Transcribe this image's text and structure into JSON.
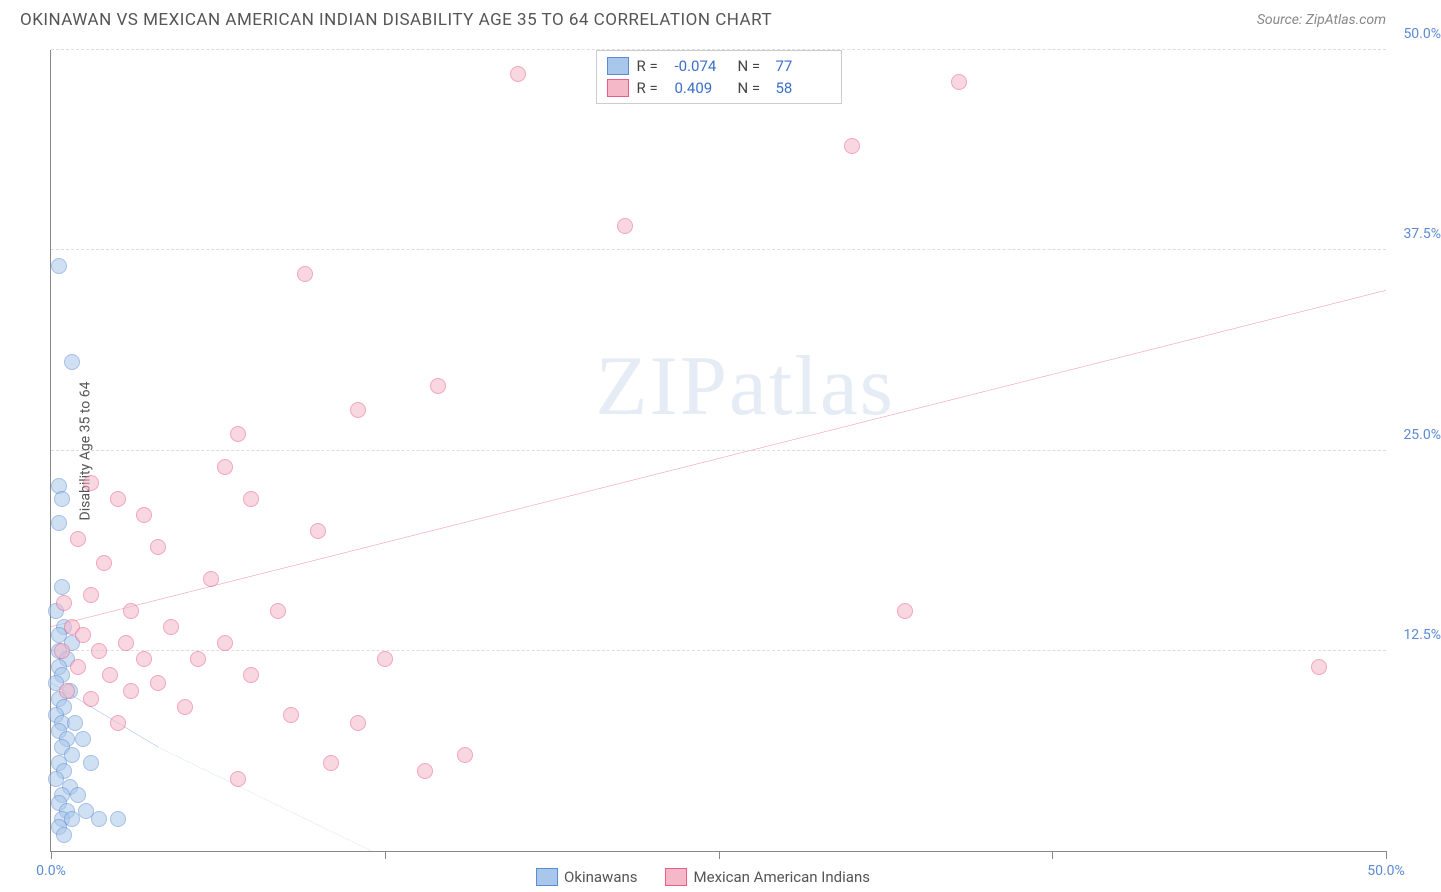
{
  "header": {
    "title": "OKINAWAN VS MEXICAN AMERICAN INDIAN DISABILITY AGE 35 TO 64 CORRELATION CHART",
    "source": "Source: ZipAtlas.com"
  },
  "watermark": {
    "part1": "ZIP",
    "part2": "atlas"
  },
  "chart": {
    "type": "scatter",
    "yaxis_label": "Disability Age 35 to 64",
    "background_color": "#ffffff",
    "grid_color": "#dddddd",
    "axis_color": "#888888",
    "tick_color": "#5b8bd4",
    "xlim": [
      0,
      50
    ],
    "ylim": [
      0,
      50
    ],
    "xticks": [
      0,
      12.5,
      25,
      37.5,
      50
    ],
    "xtick_labels": [
      "0.0%",
      "",
      "",
      "",
      "50.0%"
    ],
    "yticks": [
      12.5,
      25,
      37.5,
      50
    ],
    "ytick_labels": [
      "12.5%",
      "25.0%",
      "37.5%",
      "50.0%"
    ],
    "marker_radius": 8,
    "marker_opacity": 0.55,
    "series": [
      {
        "name": "Okinawans",
        "color_fill": "#a9c7ea",
        "color_stroke": "#5b8bd4",
        "r_value": "-0.074",
        "n_value": "77",
        "trend": {
          "x1": 0,
          "y1": 10.5,
          "x2": 4,
          "y2": 6.5,
          "dash_extend_x": 12,
          "dash_extend_y": 0
        },
        "points": [
          [
            0.3,
            36.5
          ],
          [
            0.8,
            30.5
          ],
          [
            0.3,
            22.8
          ],
          [
            0.4,
            22.0
          ],
          [
            0.3,
            20.5
          ],
          [
            0.4,
            16.5
          ],
          [
            0.2,
            15.0
          ],
          [
            0.5,
            14.0
          ],
          [
            0.3,
            13.5
          ],
          [
            0.8,
            13.0
          ],
          [
            0.3,
            12.5
          ],
          [
            0.6,
            12.0
          ],
          [
            0.3,
            11.5
          ],
          [
            0.4,
            11.0
          ],
          [
            0.2,
            10.5
          ],
          [
            0.7,
            10.0
          ],
          [
            0.3,
            9.5
          ],
          [
            0.5,
            9.0
          ],
          [
            0.2,
            8.5
          ],
          [
            0.4,
            8.0
          ],
          [
            0.9,
            8.0
          ],
          [
            0.3,
            7.5
          ],
          [
            0.6,
            7.0
          ],
          [
            1.2,
            7.0
          ],
          [
            0.4,
            6.5
          ],
          [
            0.8,
            6.0
          ],
          [
            0.3,
            5.5
          ],
          [
            1.5,
            5.5
          ],
          [
            0.5,
            5.0
          ],
          [
            0.2,
            4.5
          ],
          [
            0.7,
            4.0
          ],
          [
            0.4,
            3.5
          ],
          [
            1.0,
            3.5
          ],
          [
            0.3,
            3.0
          ],
          [
            0.6,
            2.5
          ],
          [
            1.3,
            2.5
          ],
          [
            0.4,
            2.0
          ],
          [
            0.8,
            2.0
          ],
          [
            1.8,
            2.0
          ],
          [
            0.3,
            1.5
          ],
          [
            2.5,
            2.0
          ],
          [
            0.5,
            1.0
          ]
        ]
      },
      {
        "name": "Mexican American Indians",
        "color_fill": "#f4b8c8",
        "color_stroke": "#e85d8a",
        "r_value": "0.409",
        "n_value": "58",
        "trend": {
          "x1": 0,
          "y1": 14.0,
          "x2": 50,
          "y2": 35.0
        },
        "points": [
          [
            17.5,
            48.5
          ],
          [
            34.0,
            48.0
          ],
          [
            30.0,
            44.0
          ],
          [
            21.5,
            39.0
          ],
          [
            9.5,
            36.0
          ],
          [
            14.5,
            29.0
          ],
          [
            11.5,
            27.5
          ],
          [
            7.0,
            26.0
          ],
          [
            6.5,
            24.0
          ],
          [
            1.5,
            23.0
          ],
          [
            2.5,
            22.0
          ],
          [
            7.5,
            22.0
          ],
          [
            3.5,
            21.0
          ],
          [
            10.0,
            20.0
          ],
          [
            1.0,
            19.5
          ],
          [
            4.0,
            19.0
          ],
          [
            2.0,
            18.0
          ],
          [
            32.0,
            15.0
          ],
          [
            6.0,
            17.0
          ],
          [
            1.5,
            16.0
          ],
          [
            0.5,
            15.5
          ],
          [
            3.0,
            15.0
          ],
          [
            8.5,
            15.0
          ],
          [
            0.8,
            14.0
          ],
          [
            4.5,
            14.0
          ],
          [
            1.2,
            13.5
          ],
          [
            2.8,
            13.0
          ],
          [
            6.5,
            13.0
          ],
          [
            0.4,
            12.5
          ],
          [
            1.8,
            12.5
          ],
          [
            3.5,
            12.0
          ],
          [
            5.5,
            12.0
          ],
          [
            47.5,
            11.5
          ],
          [
            1.0,
            11.5
          ],
          [
            2.2,
            11.0
          ],
          [
            4.0,
            10.5
          ],
          [
            7.5,
            11.0
          ],
          [
            0.6,
            10.0
          ],
          [
            3.0,
            10.0
          ],
          [
            12.5,
            12.0
          ],
          [
            1.5,
            9.5
          ],
          [
            5.0,
            9.0
          ],
          [
            9.0,
            8.5
          ],
          [
            11.5,
            8.0
          ],
          [
            2.5,
            8.0
          ],
          [
            15.5,
            6.0
          ],
          [
            14.0,
            5.0
          ],
          [
            10.5,
            5.5
          ],
          [
            7.0,
            4.5
          ]
        ]
      }
    ],
    "stats_labels": {
      "r": "R =",
      "n": "N ="
    },
    "legend_labels": [
      "Okinawans",
      "Mexican American Indians"
    ]
  }
}
